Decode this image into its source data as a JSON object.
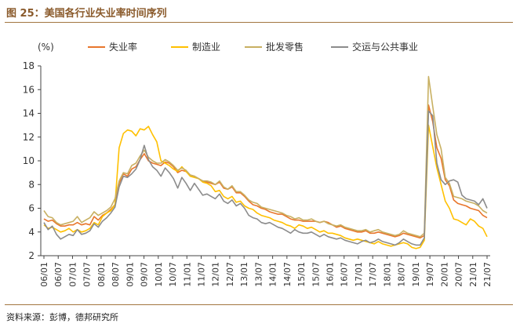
{
  "figure": {
    "title": "图 25：美国各行业失业率时间序列",
    "source": "资料来源：彭博，德邦研究所"
  },
  "chart_data": {
    "type": "line",
    "ylabel": "(%)",
    "ylim": [
      2,
      18
    ],
    "yticks": [
      2,
      4,
      6,
      8,
      10,
      12,
      14,
      16,
      18
    ],
    "legend": "top",
    "grid": false,
    "xticks": [
      "06/01",
      "06/07",
      "07/01",
      "07/07",
      "08/01",
      "08/07",
      "09/01",
      "09/07",
      "10/01",
      "10/07",
      "11/01",
      "11/07",
      "12/01",
      "12/07",
      "13/01",
      "13/07",
      "14/01",
      "14/07",
      "15/01",
      "15/07",
      "16/01",
      "16/07",
      "17/01",
      "17/07",
      "18/01",
      "18/07",
      "19/01",
      "19/07",
      "20/01",
      "20/07",
      "21/01",
      "21/07"
    ],
    "series": [
      {
        "name": "失业率",
        "color": "#e8762c",
        "values": [
          5.1,
          4.9,
          5.0,
          4.7,
          4.5,
          4.5,
          4.6,
          4.6,
          4.8,
          4.6,
          4.7,
          4.6,
          5.3,
          5.0,
          5.4,
          5.6,
          5.9,
          6.3,
          8.1,
          8.9,
          8.7,
          9.3,
          9.5,
          10.1,
          10.6,
          10.0,
          9.8,
          9.7,
          9.6,
          9.9,
          9.8,
          9.5,
          9.0,
          9.2,
          9.1,
          8.8,
          8.7,
          8.5,
          8.3,
          8.2,
          8.1,
          8.0,
          8.2,
          7.7,
          7.6,
          7.8,
          7.3,
          7.3,
          7.0,
          6.6,
          6.3,
          6.2,
          6.0,
          5.9,
          5.7,
          5.6,
          5.5,
          5.5,
          5.3,
          5.1,
          5.0,
          5.0,
          4.9,
          4.9,
          4.9,
          4.9,
          4.8,
          4.9,
          4.8,
          4.6,
          4.4,
          4.5,
          4.3,
          4.2,
          4.1,
          4.0,
          4.0,
          4.1,
          3.9,
          3.9,
          4.0,
          3.9,
          3.8,
          3.7,
          3.6,
          3.7,
          3.9,
          3.8,
          3.7,
          3.6,
          3.5,
          3.7,
          14.7,
          13.3,
          11.1,
          10.2,
          8.4,
          7.9,
          6.7,
          6.4,
          6.3,
          6.2,
          6.0,
          5.9,
          5.8,
          5.4,
          5.2
        ]
      },
      {
        "name": "制造业",
        "color": "#ffc000",
        "values": [
          4.6,
          4.3,
          4.4,
          4.2,
          4.0,
          4.1,
          4.3,
          4.0,
          4.2,
          4.0,
          4.1,
          4.3,
          4.8,
          4.6,
          5.3,
          5.6,
          5.8,
          6.3,
          11.1,
          12.3,
          12.6,
          12.5,
          12.1,
          12.7,
          12.6,
          12.9,
          12.2,
          11.6,
          10.0,
          9.8,
          9.6,
          9.3,
          9.1,
          9.5,
          9.1,
          8.7,
          8.6,
          8.5,
          8.2,
          8.1,
          7.9,
          7.4,
          7.5,
          7.0,
          6.8,
          7.0,
          6.5,
          6.6,
          6.2,
          6.0,
          5.9,
          5.6,
          5.4,
          5.3,
          5.2,
          5.0,
          4.9,
          4.8,
          4.6,
          4.5,
          4.3,
          4.6,
          4.5,
          4.3,
          4.4,
          4.2,
          4.0,
          4.1,
          3.9,
          3.9,
          3.8,
          3.7,
          3.5,
          3.4,
          3.3,
          3.4,
          3.3,
          3.2,
          3.1,
          3.0,
          3.2,
          3.0,
          2.9,
          2.8,
          2.9,
          3.0,
          3.1,
          3.0,
          2.7,
          2.6,
          2.7,
          3.3,
          13.0,
          11.2,
          9.4,
          8.0,
          6.6,
          6.0,
          5.1,
          5.0,
          4.8,
          4.6,
          5.1,
          4.9,
          4.5,
          4.3,
          3.6
        ]
      },
      {
        "name": "批发零售",
        "color": "#c8b062",
        "values": [
          5.8,
          5.3,
          5.2,
          4.8,
          4.6,
          4.7,
          4.8,
          4.9,
          5.3,
          4.8,
          5.0,
          5.2,
          5.7,
          5.4,
          5.6,
          5.8,
          6.1,
          6.8,
          8.3,
          9.0,
          8.9,
          9.6,
          9.8,
          10.4,
          10.9,
          10.3,
          10.0,
          9.8,
          9.8,
          10.1,
          9.9,
          9.6,
          9.2,
          9.4,
          9.2,
          8.8,
          8.7,
          8.5,
          8.3,
          8.3,
          8.2,
          8.0,
          8.3,
          7.8,
          7.6,
          7.9,
          7.4,
          7.4,
          7.1,
          6.7,
          6.5,
          6.4,
          6.1,
          6.0,
          5.9,
          5.8,
          5.7,
          5.6,
          5.4,
          5.3,
          5.1,
          5.2,
          5.0,
          5.0,
          5.1,
          4.9,
          4.8,
          4.9,
          4.7,
          4.6,
          4.5,
          4.6,
          4.4,
          4.3,
          4.2,
          4.1,
          4.1,
          4.2,
          4.0,
          4.1,
          4.2,
          4.0,
          3.9,
          3.8,
          3.7,
          3.8,
          4.1,
          3.9,
          3.8,
          3.7,
          3.6,
          3.9,
          17.1,
          14.6,
          12.2,
          11.0,
          8.6,
          8.1,
          7.0,
          6.9,
          6.8,
          6.6,
          6.5,
          6.4,
          6.2,
          5.8,
          5.6
        ]
      },
      {
        "name": "交运与公共事业",
        "color": "#8c8c8c",
        "values": [
          4.8,
          4.2,
          4.5,
          3.8,
          3.4,
          3.6,
          3.8,
          3.7,
          4.2,
          3.8,
          3.9,
          4.1,
          4.7,
          4.4,
          4.9,
          5.2,
          5.6,
          6.1,
          7.8,
          8.7,
          8.6,
          8.9,
          9.3,
          10.1,
          11.3,
          10.1,
          9.5,
          9.2,
          8.7,
          9.4,
          9.0,
          8.5,
          7.7,
          8.6,
          8.1,
          7.5,
          8.1,
          7.6,
          7.1,
          7.2,
          7.0,
          6.8,
          7.2,
          6.6,
          6.4,
          6.7,
          6.2,
          6.4,
          6.0,
          5.4,
          5.2,
          5.1,
          4.8,
          4.7,
          4.8,
          4.6,
          4.4,
          4.3,
          4.1,
          3.9,
          4.2,
          4.0,
          3.9,
          3.9,
          4.0,
          3.8,
          3.6,
          3.8,
          3.6,
          3.5,
          3.4,
          3.5,
          3.3,
          3.2,
          3.1,
          3.0,
          3.2,
          3.3,
          3.1,
          3.2,
          3.4,
          3.2,
          3.1,
          3.0,
          2.9,
          3.1,
          3.4,
          3.2,
          3.0,
          2.9,
          2.9,
          3.5,
          14.2,
          13.8,
          9.8,
          8.4,
          8.0,
          8.3,
          8.4,
          8.2,
          7.1,
          6.8,
          6.7,
          6.6,
          6.3,
          6.8,
          6.0
        ]
      }
    ]
  }
}
